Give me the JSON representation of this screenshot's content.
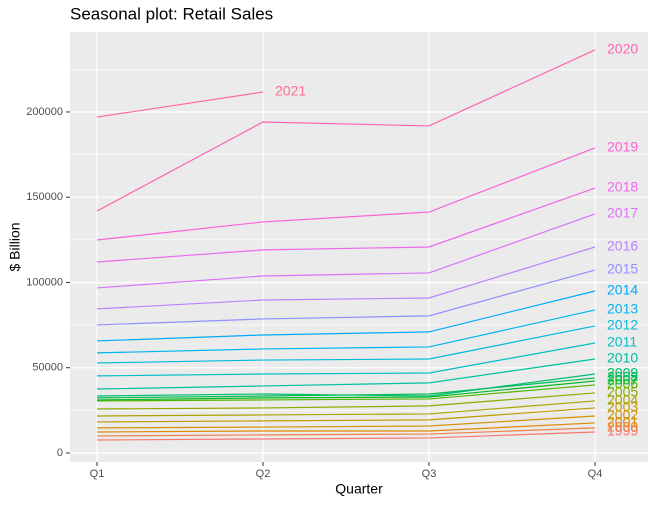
{
  "chart_data": {
    "type": "line",
    "title": "Seasonal plot: Retail Sales",
    "xlabel": "Quarter",
    "ylabel": "$ Billion",
    "categories": [
      "Q1",
      "Q2",
      "Q3",
      "Q4"
    ],
    "ylim": [
      -5300,
      246900
    ],
    "yticks": [
      0,
      50000,
      100000,
      150000,
      200000
    ],
    "grid": true,
    "series": [
      {
        "name": "1999",
        "color": "#F8766D",
        "values": [
          7600,
          8200,
          8800,
          12300
        ]
      },
      {
        "name": "2000",
        "color": "#EF7F49",
        "values": [
          10000,
          10600,
          11100,
          14700
        ]
      },
      {
        "name": "2001",
        "color": "#E38900",
        "values": [
          12300,
          12900,
          12900,
          17600
        ]
      },
      {
        "name": "2002",
        "color": "#D39200",
        "values": [
          14700,
          15200,
          15800,
          21700
        ]
      },
      {
        "name": "2003",
        "color": "#C09B00",
        "values": [
          18200,
          18800,
          19400,
          26400
        ]
      },
      {
        "name": "2004",
        "color": "#A9A400",
        "values": [
          21700,
          22300,
          22900,
          30500
        ]
      },
      {
        "name": "2005",
        "color": "#8EAB00",
        "values": [
          25800,
          26400,
          27600,
          35200
        ]
      },
      {
        "name": "2006",
        "color": "#53B400",
        "values": [
          30500,
          31100,
          31700,
          39900
        ]
      },
      {
        "name": "2007",
        "color": "#00B81F",
        "values": [
          31100,
          32300,
          32800,
          42200
        ]
      },
      {
        "name": "2008",
        "color": "#00BB4E",
        "values": [
          32300,
          33400,
          34600,
          44000
        ]
      },
      {
        "name": "2009",
        "color": "#00BE70",
        "values": [
          33400,
          34600,
          33400,
          46300
        ]
      },
      {
        "name": "2010",
        "color": "#00C0A0",
        "values": [
          37500,
          39300,
          41100,
          55100
        ]
      },
      {
        "name": "2011",
        "color": "#00BFC4",
        "values": [
          45200,
          46300,
          46900,
          64500
        ]
      },
      {
        "name": "2012",
        "color": "#00BBDB",
        "values": [
          52800,
          54500,
          55100,
          74500
        ]
      },
      {
        "name": "2013",
        "color": "#00B4EF",
        "values": [
          58700,
          61000,
          62200,
          83900
        ]
      },
      {
        "name": "2014",
        "color": "#00A9FF",
        "values": [
          65700,
          69200,
          71000,
          95000
        ]
      },
      {
        "name": "2015",
        "color": "#8F91FF",
        "values": [
          75100,
          78600,
          80400,
          107300
        ]
      },
      {
        "name": "2016",
        "color": "#B983FF",
        "values": [
          84500,
          89700,
          90900,
          120800
        ]
      },
      {
        "name": "2017",
        "color": "#DB72FB",
        "values": [
          96800,
          103800,
          105600,
          140200
        ]
      },
      {
        "name": "2018",
        "color": "#EF67EB",
        "values": [
          112000,
          119100,
          120800,
          155400
        ]
      },
      {
        "name": "2019",
        "color": "#FC61D5",
        "values": [
          124900,
          135500,
          141300,
          178900
        ]
      },
      {
        "name": "2020",
        "color": "#FF64B0",
        "values": [
          141900,
          194100,
          191800,
          236400
        ]
      },
      {
        "name": "2021",
        "color": "#FF6C91",
        "values": [
          197000,
          211700,
          null,
          null
        ]
      }
    ]
  }
}
